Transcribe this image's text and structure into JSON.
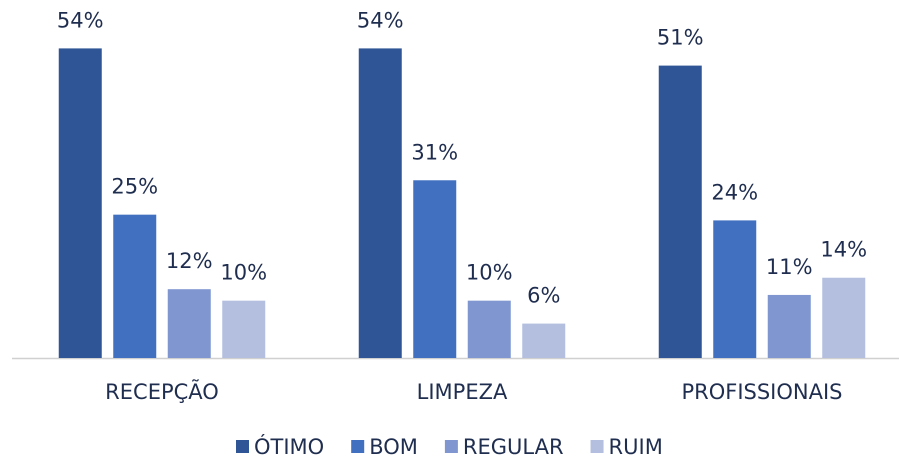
{
  "chart_data": {
    "type": "bar",
    "categories": [
      "RECEPÇÃO",
      "LIMPEZA",
      "PROFISSIONAIS"
    ],
    "series": [
      {
        "name": "ÓTIMO",
        "color": "#2f5597",
        "values": [
          54,
          54,
          51
        ],
        "value_labels": [
          "54%",
          "54%",
          "51%"
        ]
      },
      {
        "name": "BOM",
        "color": "#4170c0",
        "values": [
          25,
          31,
          24
        ],
        "value_labels": [
          "25%",
          "31%",
          "24%"
        ]
      },
      {
        "name": "REGULAR",
        "color": "#7f96d1",
        "values": [
          12,
          10,
          11
        ],
        "value_labels": [
          "12%",
          "10%",
          "11%"
        ]
      },
      {
        "name": "RUIM",
        "color": "#b4bfe0",
        "values": [
          10,
          6,
          14
        ],
        "value_labels": [
          "10%",
          "6%",
          "14%"
        ]
      }
    ],
    "ylim": [
      0,
      60
    ],
    "legend": "bottom"
  }
}
